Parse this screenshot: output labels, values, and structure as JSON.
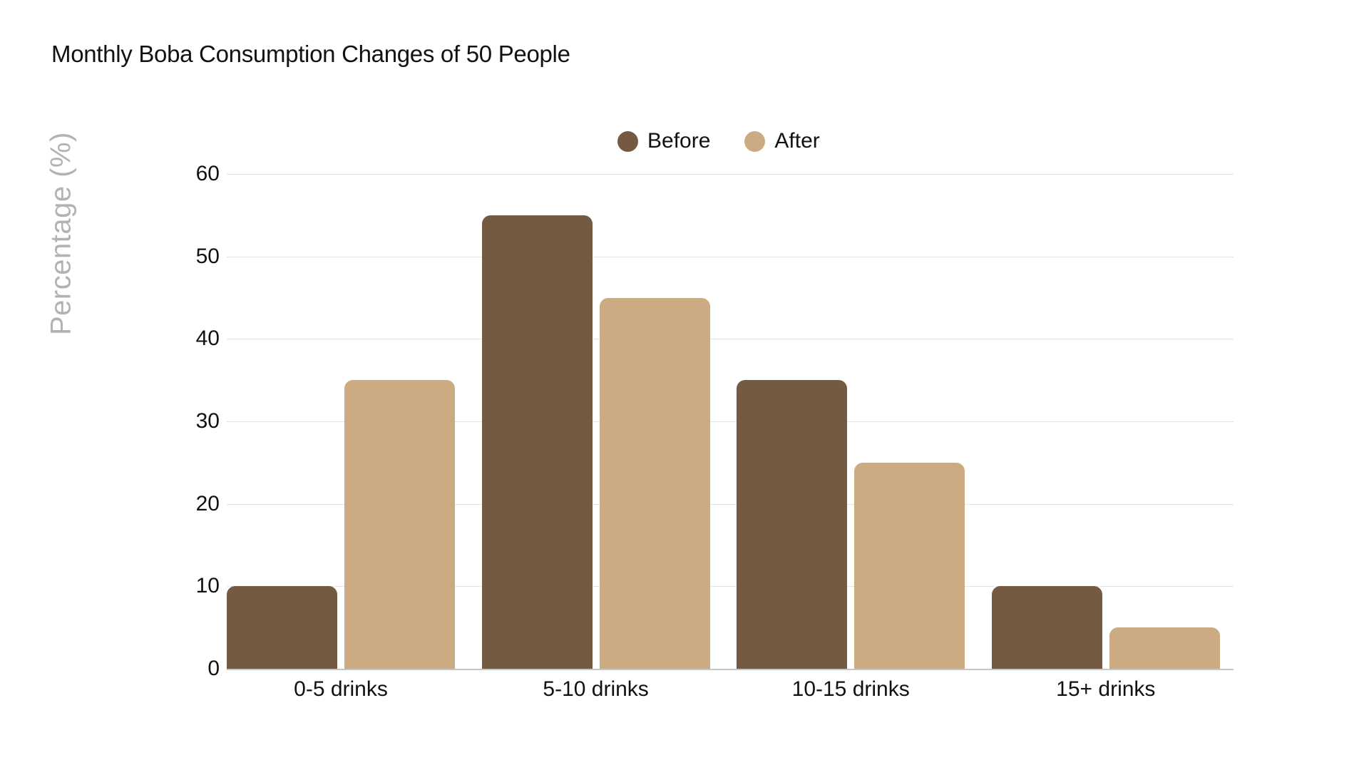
{
  "title": "Monthly Boba Consumption Changes of 50 People",
  "chart_data": {
    "type": "bar",
    "title": "Monthly Boba Consumption Changes of 50 People",
    "categories": [
      "0-5 drinks",
      "5-10 drinks",
      "10-15 drinks",
      "15+ drinks"
    ],
    "series": [
      {
        "name": "Before",
        "color": "#755A42",
        "values": [
          10,
          55,
          35,
          10
        ]
      },
      {
        "name": "After",
        "color": "#CCAB83",
        "values": [
          35,
          45,
          25,
          5
        ]
      }
    ],
    "xlabel": "",
    "ylabel": "Percentage (%)",
    "ylim": [
      0,
      60
    ],
    "yticks": [
      0,
      10,
      20,
      30,
      40,
      50,
      60
    ],
    "grid": true,
    "legend_position": "top-center",
    "legend_entries": [
      "Before",
      "After"
    ]
  },
  "colors": {
    "background": "#ffffff",
    "gridline": "#e4e4e4",
    "axis_line": "#c6c6c6",
    "title_text": "#111111",
    "tick_text": "#111111",
    "ylabel_text": "#b2b2b2",
    "before_bar": "#755A42",
    "after_bar": "#CCAB83"
  }
}
